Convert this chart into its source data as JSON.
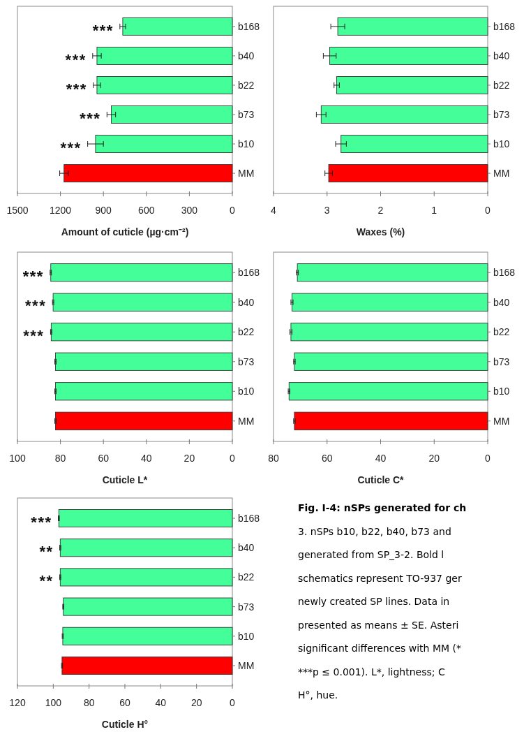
{
  "chart_data": [
    {
      "type": "bar",
      "orientation": "horizontal",
      "categories": [
        "b168",
        "b40",
        "b22",
        "b73",
        "b10",
        "MM"
      ],
      "values": [
        765,
        945,
        945,
        845,
        955,
        1175
      ],
      "errors": [
        20,
        30,
        25,
        30,
        55,
        30
      ],
      "colors": [
        "#44ff99",
        "#44ff99",
        "#44ff99",
        "#44ff99",
        "#44ff99",
        "#ff0000"
      ],
      "xlim": [
        1500,
        0
      ],
      "xticks": [
        1500,
        1200,
        900,
        600,
        300,
        0
      ],
      "xlabel": "Amount of cuticle (µg·cm⁻²)",
      "annotations": [
        "***",
        "***",
        "***",
        "***",
        "***"
      ]
    },
    {
      "type": "bar",
      "orientation": "horizontal",
      "categories": [
        "b168",
        "b40",
        "b22",
        "b73",
        "b10",
        "MM"
      ],
      "values": [
        2.8,
        2.95,
        2.82,
        3.11,
        2.74,
        2.97
      ],
      "errors": [
        0.13,
        0.12,
        0.05,
        0.09,
        0.1,
        0.07
      ],
      "colors": [
        "#44ff99",
        "#44ff99",
        "#44ff99",
        "#44ff99",
        "#44ff99",
        "#ff0000"
      ],
      "xlim": [
        4,
        0
      ],
      "xticks": [
        4,
        3,
        2,
        1,
        0
      ],
      "xlabel": "Waxes (%)"
    },
    {
      "type": "bar",
      "orientation": "horizontal",
      "categories": [
        "b168",
        "b40",
        "b22",
        "b73",
        "b10",
        "MM"
      ],
      "values": [
        84.5,
        83.4,
        84.3,
        82.3,
        82.3,
        82.3
      ],
      "errors": [
        0.3,
        0.3,
        0.3,
        0.3,
        0.3,
        0.3
      ],
      "colors": [
        "#44ff99",
        "#44ff99",
        "#44ff99",
        "#44ff99",
        "#44ff99",
        "#ff0000"
      ],
      "xlim": [
        100,
        0
      ],
      "xticks": [
        100,
        80,
        60,
        40,
        20,
        0
      ],
      "xlabel": "Cuticle L*",
      "annotations": [
        "***",
        "***",
        "***"
      ]
    },
    {
      "type": "bar",
      "orientation": "horizontal",
      "categories": [
        "b168",
        "b40",
        "b22",
        "b73",
        "b10",
        "MM"
      ],
      "values": [
        71.1,
        73.1,
        73.5,
        72.2,
        74.2,
        72.2
      ],
      "errors": [
        0.4,
        0.4,
        0.4,
        0.3,
        0.3,
        0.3
      ],
      "colors": [
        "#44ff99",
        "#44ff99",
        "#44ff99",
        "#44ff99",
        "#44ff99",
        "#ff0000"
      ],
      "xlim": [
        80,
        0
      ],
      "xticks": [
        80,
        60,
        40,
        20,
        0
      ],
      "xlabel": "Cuticle C*"
    },
    {
      "type": "bar",
      "orientation": "horizontal",
      "categories": [
        "b168",
        "b40",
        "b22",
        "b73",
        "b10",
        "MM"
      ],
      "values": [
        96.9,
        96.1,
        96.1,
        94.4,
        94.7,
        95.1
      ],
      "errors": [
        0.3,
        0.3,
        0.3,
        0.3,
        0.3,
        0.3
      ],
      "colors": [
        "#44ff99",
        "#44ff99",
        "#44ff99",
        "#44ff99",
        "#44ff99",
        "#ff0000"
      ],
      "xlim": [
        120,
        0
      ],
      "xticks": [
        120,
        100,
        80,
        60,
        40,
        20,
        0
      ],
      "xlabel": "Cuticle H°",
      "annotations": [
        "***",
        "**",
        "**"
      ]
    },
    {
      "type": "other",
      "annotations": [
        "Fig. I-4: nSPs generated for ch",
        "3. nSPs b10, b22, b40, b73 and",
        "generated from SP_3-2. Bold l",
        "schematics represent TO-937 ger",
        "newly created SP lines. Data in",
        "presented as means ± SE. Asteri",
        "significant differences with MM (*",
        "***p ≤ 0.001). L*, lightness; C",
        "H°, hue."
      ]
    }
  ]
}
